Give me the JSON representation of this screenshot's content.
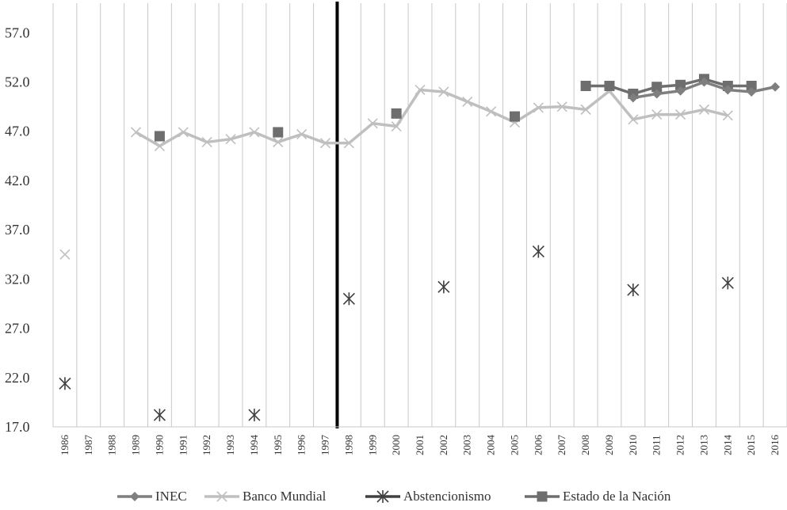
{
  "chart_data": {
    "type": "line",
    "title": "",
    "xlabel": "",
    "ylabel": "",
    "ylim": [
      17,
      60
    ],
    "yticks": [
      "17.0",
      "22.0",
      "27.0",
      "32.0",
      "37.0",
      "42.0",
      "47.0",
      "52.0",
      "57.0"
    ],
    "grid": "vertical",
    "legend_position": "bottom",
    "categories": [
      "1986",
      "1987",
      "1988",
      "1989",
      "1990",
      "1991",
      "1992",
      "1993",
      "1994",
      "1995",
      "1996",
      "1997",
      "1998",
      "1999",
      "2000",
      "2001",
      "2002",
      "2003",
      "2004",
      "2005",
      "2006",
      "2007",
      "2008",
      "2009",
      "2010",
      "2011",
      "2012",
      "2013",
      "2014",
      "2015",
      "2016"
    ],
    "reference_line": {
      "after_category": "1997",
      "color": "#000000"
    },
    "series": [
      {
        "name": "INEC",
        "color": "#7f7f7f",
        "marker": "diamond",
        "connect": true,
        "values": [
          null,
          null,
          null,
          null,
          null,
          null,
          null,
          null,
          null,
          null,
          null,
          null,
          null,
          null,
          null,
          null,
          null,
          null,
          null,
          null,
          null,
          null,
          null,
          null,
          50.4,
          50.8,
          51.1,
          52.0,
          51.2,
          51.0,
          51.5
        ]
      },
      {
        "name": "Banco Mundial",
        "color": "#bfbfbf",
        "marker": "x",
        "connect": true,
        "values": [
          34.5,
          null,
          null,
          46.9,
          45.5,
          46.9,
          45.9,
          46.2,
          46.9,
          45.9,
          46.7,
          45.8,
          45.8,
          47.8,
          47.5,
          51.2,
          51.0,
          50.0,
          49.0,
          47.9,
          49.4,
          49.5,
          49.2,
          51.1,
          48.2,
          48.7,
          48.7,
          49.2,
          48.6,
          null,
          null
        ]
      },
      {
        "name": "Abstencionismo",
        "color": "#404040",
        "marker": "asterisk",
        "connect": false,
        "values": [
          21.4,
          null,
          null,
          null,
          18.2,
          null,
          null,
          null,
          18.2,
          null,
          null,
          null,
          30.0,
          null,
          null,
          null,
          31.2,
          null,
          null,
          null,
          34.8,
          null,
          null,
          null,
          30.9,
          null,
          null,
          null,
          31.6,
          null,
          null
        ]
      },
      {
        "name": "Estado de la Nación",
        "color": "#6e6e6e",
        "marker": "square",
        "connect": true,
        "values": [
          null,
          null,
          null,
          null,
          46.5,
          null,
          null,
          null,
          null,
          46.9,
          null,
          null,
          null,
          null,
          48.8,
          null,
          null,
          null,
          null,
          48.5,
          null,
          null,
          51.6,
          51.6,
          50.8,
          51.5,
          51.7,
          52.3,
          51.6,
          51.6,
          null
        ]
      }
    ]
  }
}
